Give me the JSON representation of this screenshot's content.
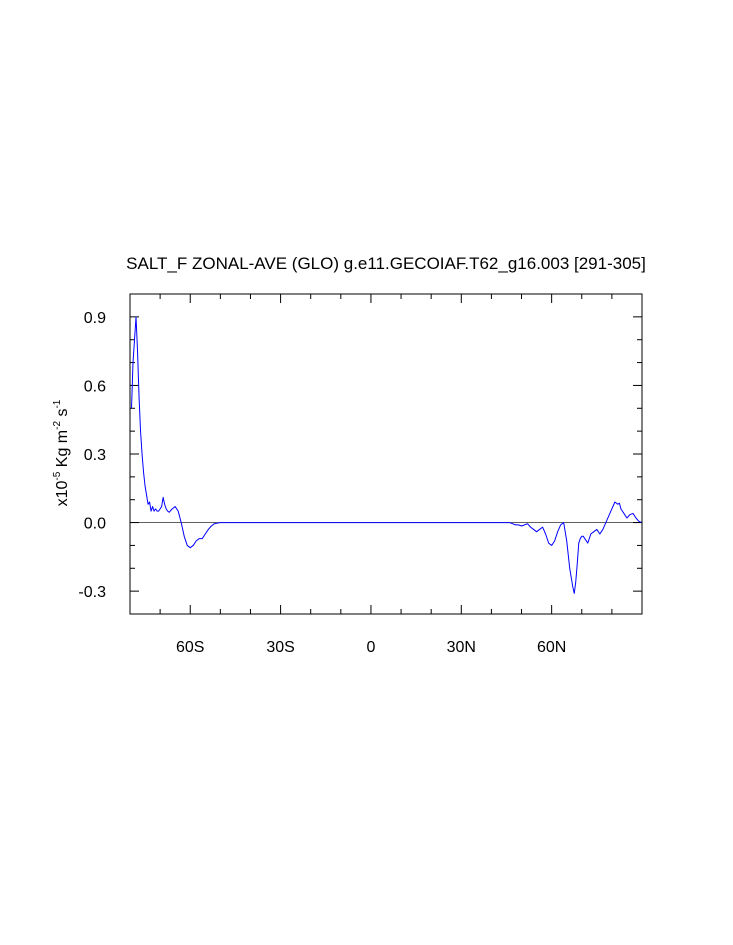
{
  "chart_data": {
    "type": "line",
    "title": "SALT_F ZONAL-AVE (GLO) g.e11.GECOIAF.T62_g16.003 [291-305]",
    "ylabel_prefix": "x10",
    "ylabel_exp1": "-5",
    "ylabel_mid1": " Kg m",
    "ylabel_exp2": "-2",
    "ylabel_mid2": " s",
    "ylabel_exp3": "-1",
    "xlim": [
      -80,
      90
    ],
    "ylim": [
      -0.4,
      1.0
    ],
    "x_ticks": [
      {
        "value": -60,
        "label": "60S"
      },
      {
        "value": -30,
        "label": "30S"
      },
      {
        "value": 0,
        "label": "0"
      },
      {
        "value": 30,
        "label": "30N"
      },
      {
        "value": 60,
        "label": "60N"
      }
    ],
    "y_ticks": [
      {
        "value": 0.9,
        "label": "0.9"
      },
      {
        "value": 0.6,
        "label": "0.6"
      },
      {
        "value": 0.3,
        "label": "0.3"
      },
      {
        "value": 0.0,
        "label": "0.0"
      },
      {
        "value": -0.3,
        "label": "-0.3"
      }
    ],
    "x_minor_step": 10,
    "y_minor_step": 0.1,
    "zero_line": true,
    "grid": false,
    "series": [
      {
        "color": "#0000ff",
        "x": [
          -79.5,
          -79.0,
          -78.5,
          -78.0,
          -77.5,
          -77.0,
          -76.5,
          -76.0,
          -75.5,
          -75.0,
          -74.5,
          -74.0,
          -73.5,
          -73.0,
          -72.5,
          -72.0,
          -71.5,
          -71.0,
          -70.5,
          -70.0,
          -69.5,
          -69.0,
          -68.5,
          -68.0,
          -67.5,
          -67.0,
          -66.0,
          -65.0,
          -64.0,
          -63.0,
          -62.0,
          -61.0,
          -60.0,
          -59.0,
          -58.0,
          -57.0,
          -56.0,
          -55.0,
          -54.0,
          -53.0,
          -52.0,
          -50.0,
          -45.0,
          -30.0,
          0.0,
          30.0,
          45.0,
          46.0,
          47.0,
          48.0,
          49.0,
          50.0,
          51.0,
          52.0,
          53.0,
          54.0,
          55.0,
          56.0,
          57.0,
          58.0,
          59.0,
          60.0,
          61.0,
          62.0,
          63.0,
          64.0,
          65.0,
          66.0,
          66.5,
          67.0,
          67.5,
          68.0,
          68.5,
          69.0,
          69.5,
          70.0,
          70.5,
          71.0,
          72.0,
          73.0,
          74.0,
          75.0,
          76.0,
          77.0,
          78.0,
          79.0,
          80.0,
          81.0,
          82.0,
          82.5,
          83.0,
          83.5,
          84.0,
          85.0,
          86.0,
          87.0,
          88.0,
          89.0,
          90.0
        ],
        "y": [
          0.5,
          0.7,
          0.8,
          0.9,
          0.75,
          0.55,
          0.4,
          0.3,
          0.22,
          0.16,
          0.12,
          0.08,
          0.09,
          0.05,
          0.07,
          0.05,
          0.06,
          0.05,
          0.05,
          0.06,
          0.07,
          0.11,
          0.08,
          0.06,
          0.05,
          0.045,
          0.06,
          0.07,
          0.05,
          0.0,
          -0.06,
          -0.1,
          -0.11,
          -0.1,
          -0.08,
          -0.07,
          -0.07,
          -0.05,
          -0.03,
          -0.015,
          -0.005,
          0.0,
          0.0,
          0.0,
          0.0,
          0.0,
          0.0,
          0.0,
          -0.005,
          -0.01,
          -0.01,
          -0.015,
          -0.01,
          -0.005,
          -0.02,
          -0.03,
          -0.04,
          -0.03,
          -0.02,
          -0.05,
          -0.09,
          -0.1,
          -0.08,
          -0.04,
          -0.01,
          0.0,
          -0.08,
          -0.2,
          -0.24,
          -0.28,
          -0.31,
          -0.26,
          -0.18,
          -0.09,
          -0.07,
          -0.06,
          -0.06,
          -0.07,
          -0.09,
          -0.05,
          -0.04,
          -0.03,
          -0.05,
          -0.03,
          0.0,
          0.03,
          0.06,
          0.09,
          0.08,
          0.085,
          0.06,
          0.05,
          0.04,
          0.02,
          0.035,
          0.04,
          0.02,
          0.005,
          0.0
        ]
      }
    ]
  }
}
